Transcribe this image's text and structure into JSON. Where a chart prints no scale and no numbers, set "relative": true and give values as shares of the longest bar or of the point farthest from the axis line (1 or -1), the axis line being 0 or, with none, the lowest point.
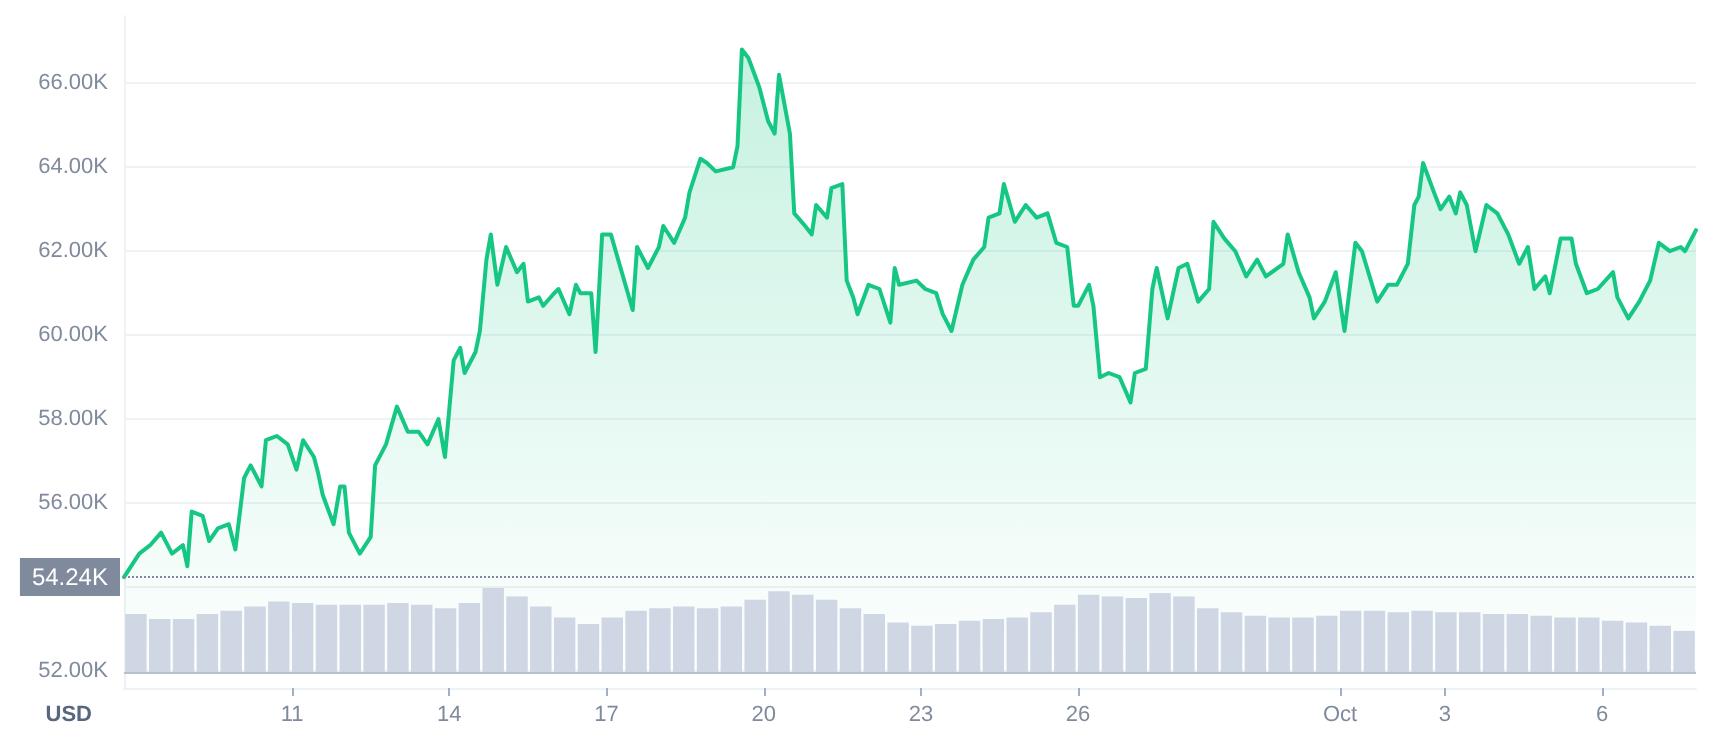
{
  "chart_data": [
    {
      "type": "area",
      "ylabel": "USD",
      "color": "#16c784",
      "marker": "none",
      "grid": "y",
      "line_style": "solid",
      "x": [
        "--09-07T19:00",
        "--09-08T02:00",
        "--09-08T07:00",
        "--09-08T12:00",
        "--09-08T17:00",
        "--09-08T22:00",
        "--09-09T00:00",
        "--09-09T02:00",
        "--09-09T07:00",
        "--09-09T10:00",
        "--09-09T14:00",
        "--09-09T19:00",
        "--09-09T22:00",
        "--09-10T02:00",
        "--09-10T05:00",
        "--09-10T10:00",
        "--09-10T12:00",
        "--09-10T17:00",
        "--09-10T22:00",
        "--09-11T02:00",
        "--09-11T05:00",
        "--09-11T10:00",
        "--09-11T12:00",
        "--09-11T14:00",
        "--09-11T19:00",
        "--09-11T22:00",
        "--09-12T00:00",
        "--09-12T02:00",
        "--09-12T07:00",
        "--09-12T12:00",
        "--09-12T14:00",
        "--09-12T19:00",
        "--09-13T00:00",
        "--09-13T05:00",
        "--09-13T10:00",
        "--09-13T14:00",
        "--09-13T19:00",
        "--09-13T22:00",
        "--09-14T02:00",
        "--09-14T05:00",
        "--09-14T07:00",
        "--09-14T12:00",
        "--09-14T14:00",
        "--09-14T17:00",
        "--09-14T19:00",
        "--09-14T22:00",
        "--09-15T02:00",
        "--09-15T07:00",
        "--09-15T10:00",
        "--09-15T12:00",
        "--09-15T17:00",
        "--09-15T19:00",
        "--09-16T00:00",
        "--09-16T02:00",
        "--09-16T07:00",
        "--09-16T10:00",
        "--09-16T12:00",
        "--09-16T17:00",
        "--09-16T19:00",
        "--09-16T22:00",
        "--09-17T02:00",
        "--09-17T07:00",
        "--09-17T12:00",
        "--09-17T14:00",
        "--09-17T19:00",
        "--09-18T00:00",
        "--09-18T02:00",
        "--09-18T07:00",
        "--09-18T12:00",
        "--09-18T14:00",
        "--09-18T19:00",
        "--09-18T22:00",
        "--09-19T02:00",
        "--09-19T10:00",
        "--09-19T12:00",
        "--09-19T14:00",
        "--09-19T17:00",
        "--09-19T22:00",
        "--09-20T02:00",
        "--09-20T05:00",
        "--09-20T07:00",
        "--09-20T12:00",
        "--09-20T14:00",
        "--09-20T19:00",
        "--09-20T22:00",
        "--09-21T00:00",
        "--09-21T05:00",
        "--09-21T07:00",
        "--09-21T12:00",
        "--09-21T14:00",
        "--09-21T17:00",
        "--09-21T19:00",
        "--09-22T00:00",
        "--09-22T05:00",
        "--09-22T10:00",
        "--09-22T12:00",
        "--09-22T14:00",
        "--09-22T22:00",
        "--09-23T02:00",
        "--09-23T07:00",
        "--09-23T10:00",
        "--09-23T14:00",
        "--09-23T19:00",
        "--09-24T00:00",
        "--09-24T05:00",
        "--09-24T07:00",
        "--09-24T12:00",
        "--09-24T14:00",
        "--09-24T19:00",
        "--09-25T00:00",
        "--09-25T05:00",
        "--09-25T10:00",
        "--09-25T14:00",
        "--09-25T19:00",
        "--09-25T22:00",
        "--09-26T00:00",
        "--09-26T05:00",
        "--09-26T07:00",
        "--09-26T10:00",
        "--09-26T14:00",
        "--09-26T19:00",
        "--09-27T00:00",
        "--09-27T02:00",
        "--09-27T07:00",
        "--09-27T10:00",
        "--09-27T12:00",
        "--09-27T17:00",
        "--09-27T22:00",
        "--09-28T02:00",
        "--09-28T07:00",
        "--09-28T12:00",
        "--09-28T14:00",
        "--09-28T19:00",
        "--09-29T00:00",
        "--09-29T05:00",
        "--09-29T10:00",
        "--09-29T14:00",
        "--09-29T22:00",
        "--09-30T00:00",
        "--09-30T05:00",
        "--09-30T10:00",
        "--09-30T12:00",
        "--09-30T17:00",
        "--09-30T22:00",
        "--10-01T02:00",
        "--10-01T07:00",
        "--10-01T10:00",
        "--10-01T17:00",
        "--10-01T22:00",
        "--10-02T02:00",
        "--10-02T07:00",
        "--10-02T10:00",
        "--10-02T12:00",
        "--10-02T14:00",
        "--10-02T19:00",
        "--10-02T22:00",
        "--10-03T02:00",
        "--10-03T05:00",
        "--10-03T07:00",
        "--10-03T10:00",
        "--10-03T14:00",
        "--10-03T19:00",
        "--10-04T00:00",
        "--10-04T05:00",
        "--10-04T10:00",
        "--10-04T14:00",
        "--10-04T17:00",
        "--10-04T22:00",
        "--10-05T00:00",
        "--10-05T05:00",
        "--10-05T10:00",
        "--10-05T12:00",
        "--10-05T17:00",
        "--10-05T22:00",
        "--10-06T05:00",
        "--10-06T07:00",
        "--10-06T12:00",
        "--10-06T17:00",
        "--10-06T22:00",
        "--10-07T02:00",
        "--10-07T07:00",
        "--10-07T12:00",
        "--10-07T14:00",
        "--10-07T19:00"
      ],
      "values": [
        54240,
        54800,
        55000,
        55300,
        54800,
        55000,
        54500,
        55800,
        55700,
        55100,
        55400,
        55500,
        54900,
        56600,
        56900,
        56400,
        57500,
        57600,
        57400,
        56800,
        57500,
        57100,
        56700,
        56200,
        55500,
        56400,
        56400,
        55300,
        54800,
        55200,
        56900,
        57400,
        58300,
        57700,
        57700,
        57400,
        58000,
        57100,
        59400,
        59700,
        59100,
        59600,
        60100,
        61800,
        62400,
        61200,
        62100,
        61500,
        61700,
        60800,
        60900,
        60700,
        61000,
        61100,
        60500,
        61200,
        61000,
        61000,
        59600,
        62400,
        62400,
        61500,
        60600,
        62100,
        61600,
        62100,
        62600,
        62200,
        62800,
        63400,
        64200,
        64100,
        63900,
        64000,
        64500,
        66800,
        66600,
        65900,
        65100,
        64800,
        66200,
        64800,
        62900,
        62600,
        62400,
        63100,
        62800,
        63500,
        63600,
        61300,
        60900,
        60500,
        61200,
        61100,
        60300,
        61600,
        61200,
        61300,
        61100,
        61000,
        60500,
        60100,
        61200,
        61800,
        62100,
        62800,
        62900,
        63600,
        62700,
        63100,
        62800,
        62900,
        62200,
        62100,
        60700,
        60700,
        61200,
        60700,
        59000,
        59100,
        59000,
        58400,
        59100,
        59200,
        61100,
        61600,
        60400,
        61600,
        61700,
        60800,
        61100,
        62700,
        62300,
        62000,
        61400,
        61800,
        61400,
        61700,
        62400,
        61500,
        60900,
        60400,
        60800,
        61500,
        60100,
        62200,
        62000,
        60800,
        61200,
        61200,
        61700,
        63100,
        63300,
        64100,
        63400,
        63000,
        63300,
        62900,
        63400,
        63100,
        62000,
        63100,
        62900,
        62400,
        61700,
        62100,
        61100,
        61400,
        61000,
        62300,
        62300,
        61700,
        61000,
        61100,
        61500,
        60900,
        60400,
        60800,
        61300,
        62200,
        62000,
        62100,
        62000,
        62500
      ],
      "xlim": [
        "--09-07T19:00",
        "--10-07T19:00"
      ],
      "xticks": [
        {
          "value": "--09-11",
          "label": "11"
        },
        {
          "value": "--09-14",
          "label": "14"
        },
        {
          "value": "--09-17",
          "label": "17"
        },
        {
          "value": "--09-20",
          "label": "20"
        },
        {
          "value": "--09-23",
          "label": "23"
        },
        {
          "value": "--09-26",
          "label": "26"
        },
        {
          "value": "--10-01",
          "label": "Oct"
        },
        {
          "value": "--10-03",
          "label": "3"
        },
        {
          "value": "--10-06",
          "label": "6"
        }
      ],
      "ylim": [
        51600,
        67600
      ],
      "yticks": [
        {
          "value": 52000,
          "label": "52.00K"
        },
        {
          "value": 54000,
          "label": null
        },
        {
          "value": 56000,
          "label": "56.00K"
        },
        {
          "value": 58000,
          "label": "58.00K"
        },
        {
          "value": 60000,
          "label": "60.00K"
        },
        {
          "value": 62000,
          "label": "62.00K"
        },
        {
          "value": 64000,
          "label": "64.00K"
        },
        {
          "value": 66000,
          "label": "66.00K"
        }
      ],
      "ref_lines": [
        {
          "axis": "y",
          "value": 54240,
          "label": "54.24K",
          "color": "#808a9d",
          "line_style": "dotted"
        }
      ]
    },
    {
      "type": "bar",
      "relative": true,
      "color": "#cfd6e4",
      "categories": [
        null,
        null,
        null,
        null,
        null,
        null,
        null,
        null,
        null,
        null,
        null,
        null,
        null,
        null,
        null,
        null,
        null,
        null,
        null,
        null,
        null,
        null,
        null,
        null,
        null,
        null,
        null,
        null,
        null,
        null,
        null,
        null,
        null,
        null,
        null,
        null,
        null,
        null,
        null,
        null,
        null,
        null,
        null,
        null,
        null,
        null,
        null,
        null,
        null,
        null,
        null,
        null,
        null,
        null,
        null,
        null,
        null,
        null,
        null,
        null,
        null,
        null,
        null,
        null,
        null,
        null
      ],
      "values": [
        0.69,
        0.63,
        0.63,
        0.69,
        0.73,
        0.78,
        0.84,
        0.82,
        0.8,
        0.8,
        0.8,
        0.82,
        0.8,
        0.76,
        0.82,
        1,
        0.9,
        0.78,
        0.65,
        0.57,
        0.65,
        0.73,
        0.76,
        0.78,
        0.76,
        0.78,
        0.86,
        0.96,
        0.92,
        0.86,
        0.76,
        0.69,
        0.59,
        0.55,
        0.57,
        0.61,
        0.63,
        0.65,
        0.71,
        0.8,
        0.92,
        0.9,
        0.88,
        0.94,
        0.9,
        0.76,
        0.71,
        0.67,
        0.65,
        0.65,
        0.67,
        0.73,
        0.73,
        0.71,
        0.73,
        0.71,
        0.71,
        0.69,
        0.69,
        0.67,
        0.65,
        0.65,
        0.61,
        0.59,
        0.55,
        0.49
      ]
    }
  ]
}
